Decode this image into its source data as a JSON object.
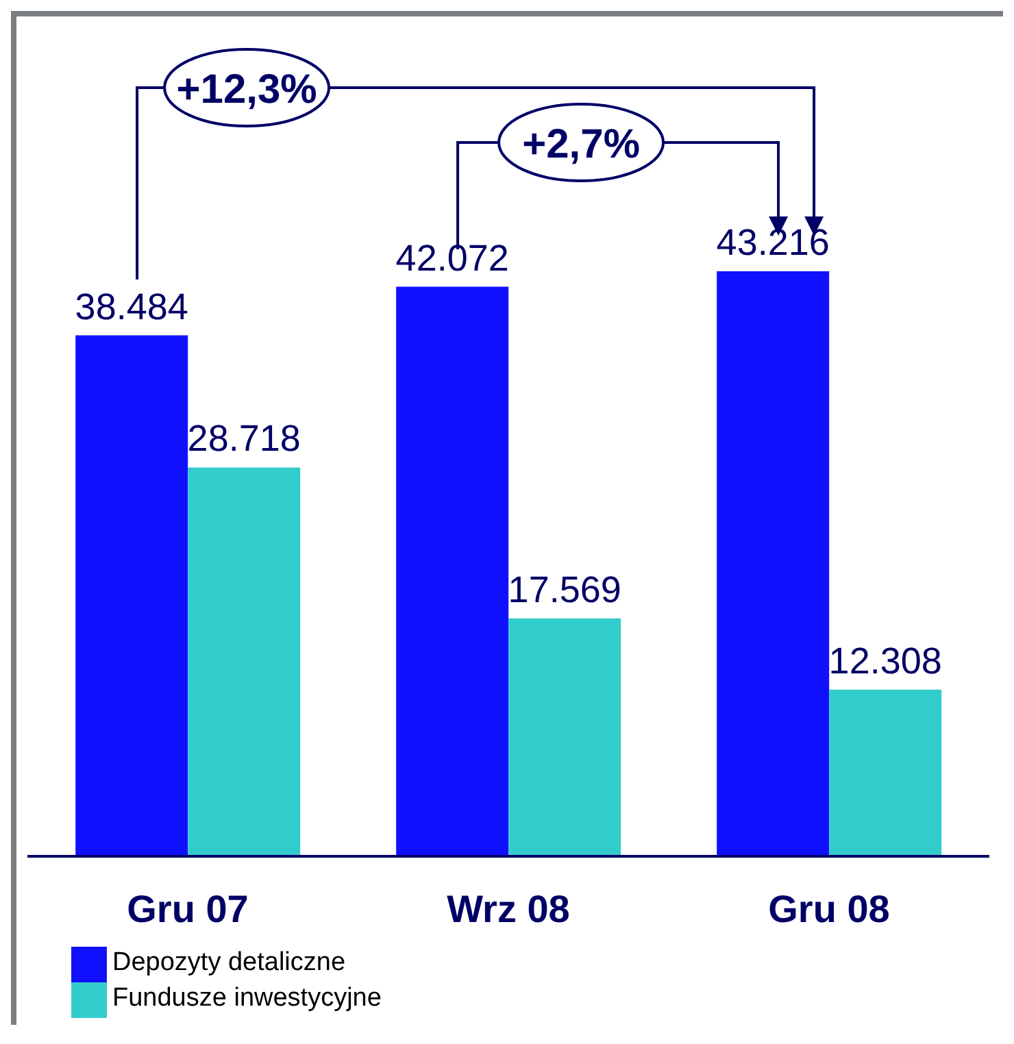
{
  "chart_data": {
    "type": "bar",
    "categories": [
      "Gru 07",
      "Wrz 08",
      "Gru 08"
    ],
    "series": [
      {
        "name": "Depozyty detaliczne",
        "color": "#1010ff",
        "values": [
          38484,
          42072,
          43216
        ],
        "value_labels": [
          "38.484",
          "42.072",
          "43.216"
        ]
      },
      {
        "name": "Fundusze inwestycyjne",
        "color": "#33cccc",
        "values": [
          28718,
          17569,
          12308
        ],
        "value_labels": [
          "28.718",
          "17.569",
          "12.308"
        ]
      }
    ],
    "annotations": [
      "+12,3%",
      "+2,7%"
    ],
    "legend": "bottom left"
  }
}
